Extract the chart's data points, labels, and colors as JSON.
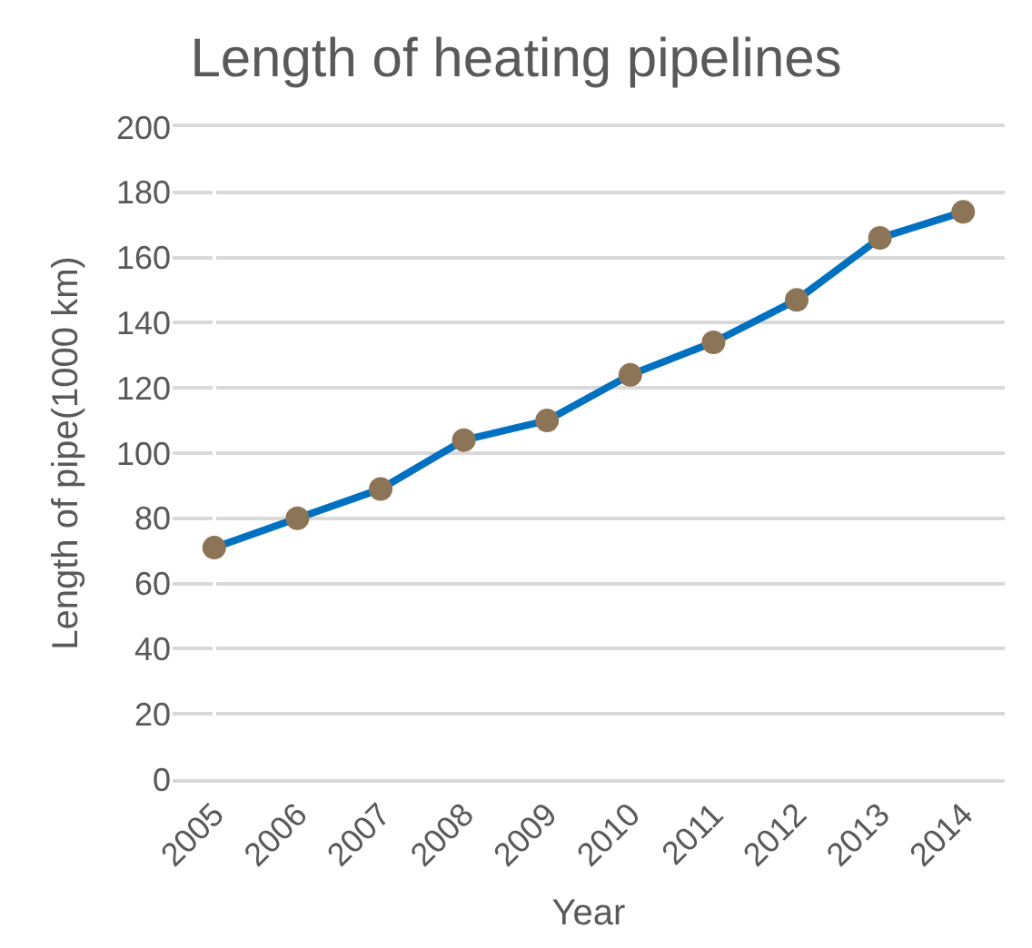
{
  "chart_data": {
    "type": "line",
    "title": "Length of heating pipelines",
    "xlabel": "Year",
    "ylabel": "Length of pipe(1000 km)",
    "categories": [
      "2005",
      "2006",
      "2007",
      "2008",
      "2009",
      "2010",
      "2011",
      "2012",
      "2013",
      "2014"
    ],
    "series": [
      {
        "color": "#0070c0",
        "colors": [
          "#8c7456",
          "#8c7456",
          "#8c7456",
          "#8c7456",
          "#8c7456",
          "#8c7456",
          "#8c7456",
          "#8c7456",
          "#8c7456",
          "#8c7456"
        ],
        "values": [
          71,
          80,
          89,
          104,
          110,
          124,
          134,
          147,
          166,
          174
        ]
      }
    ],
    "ylim": [
      0,
      200
    ],
    "yticks": [
      0,
      20,
      40,
      60,
      80,
      100,
      120,
      140,
      160,
      180,
      200
    ],
    "grid": "y",
    "marker": "circle",
    "line_style": "solid"
  }
}
